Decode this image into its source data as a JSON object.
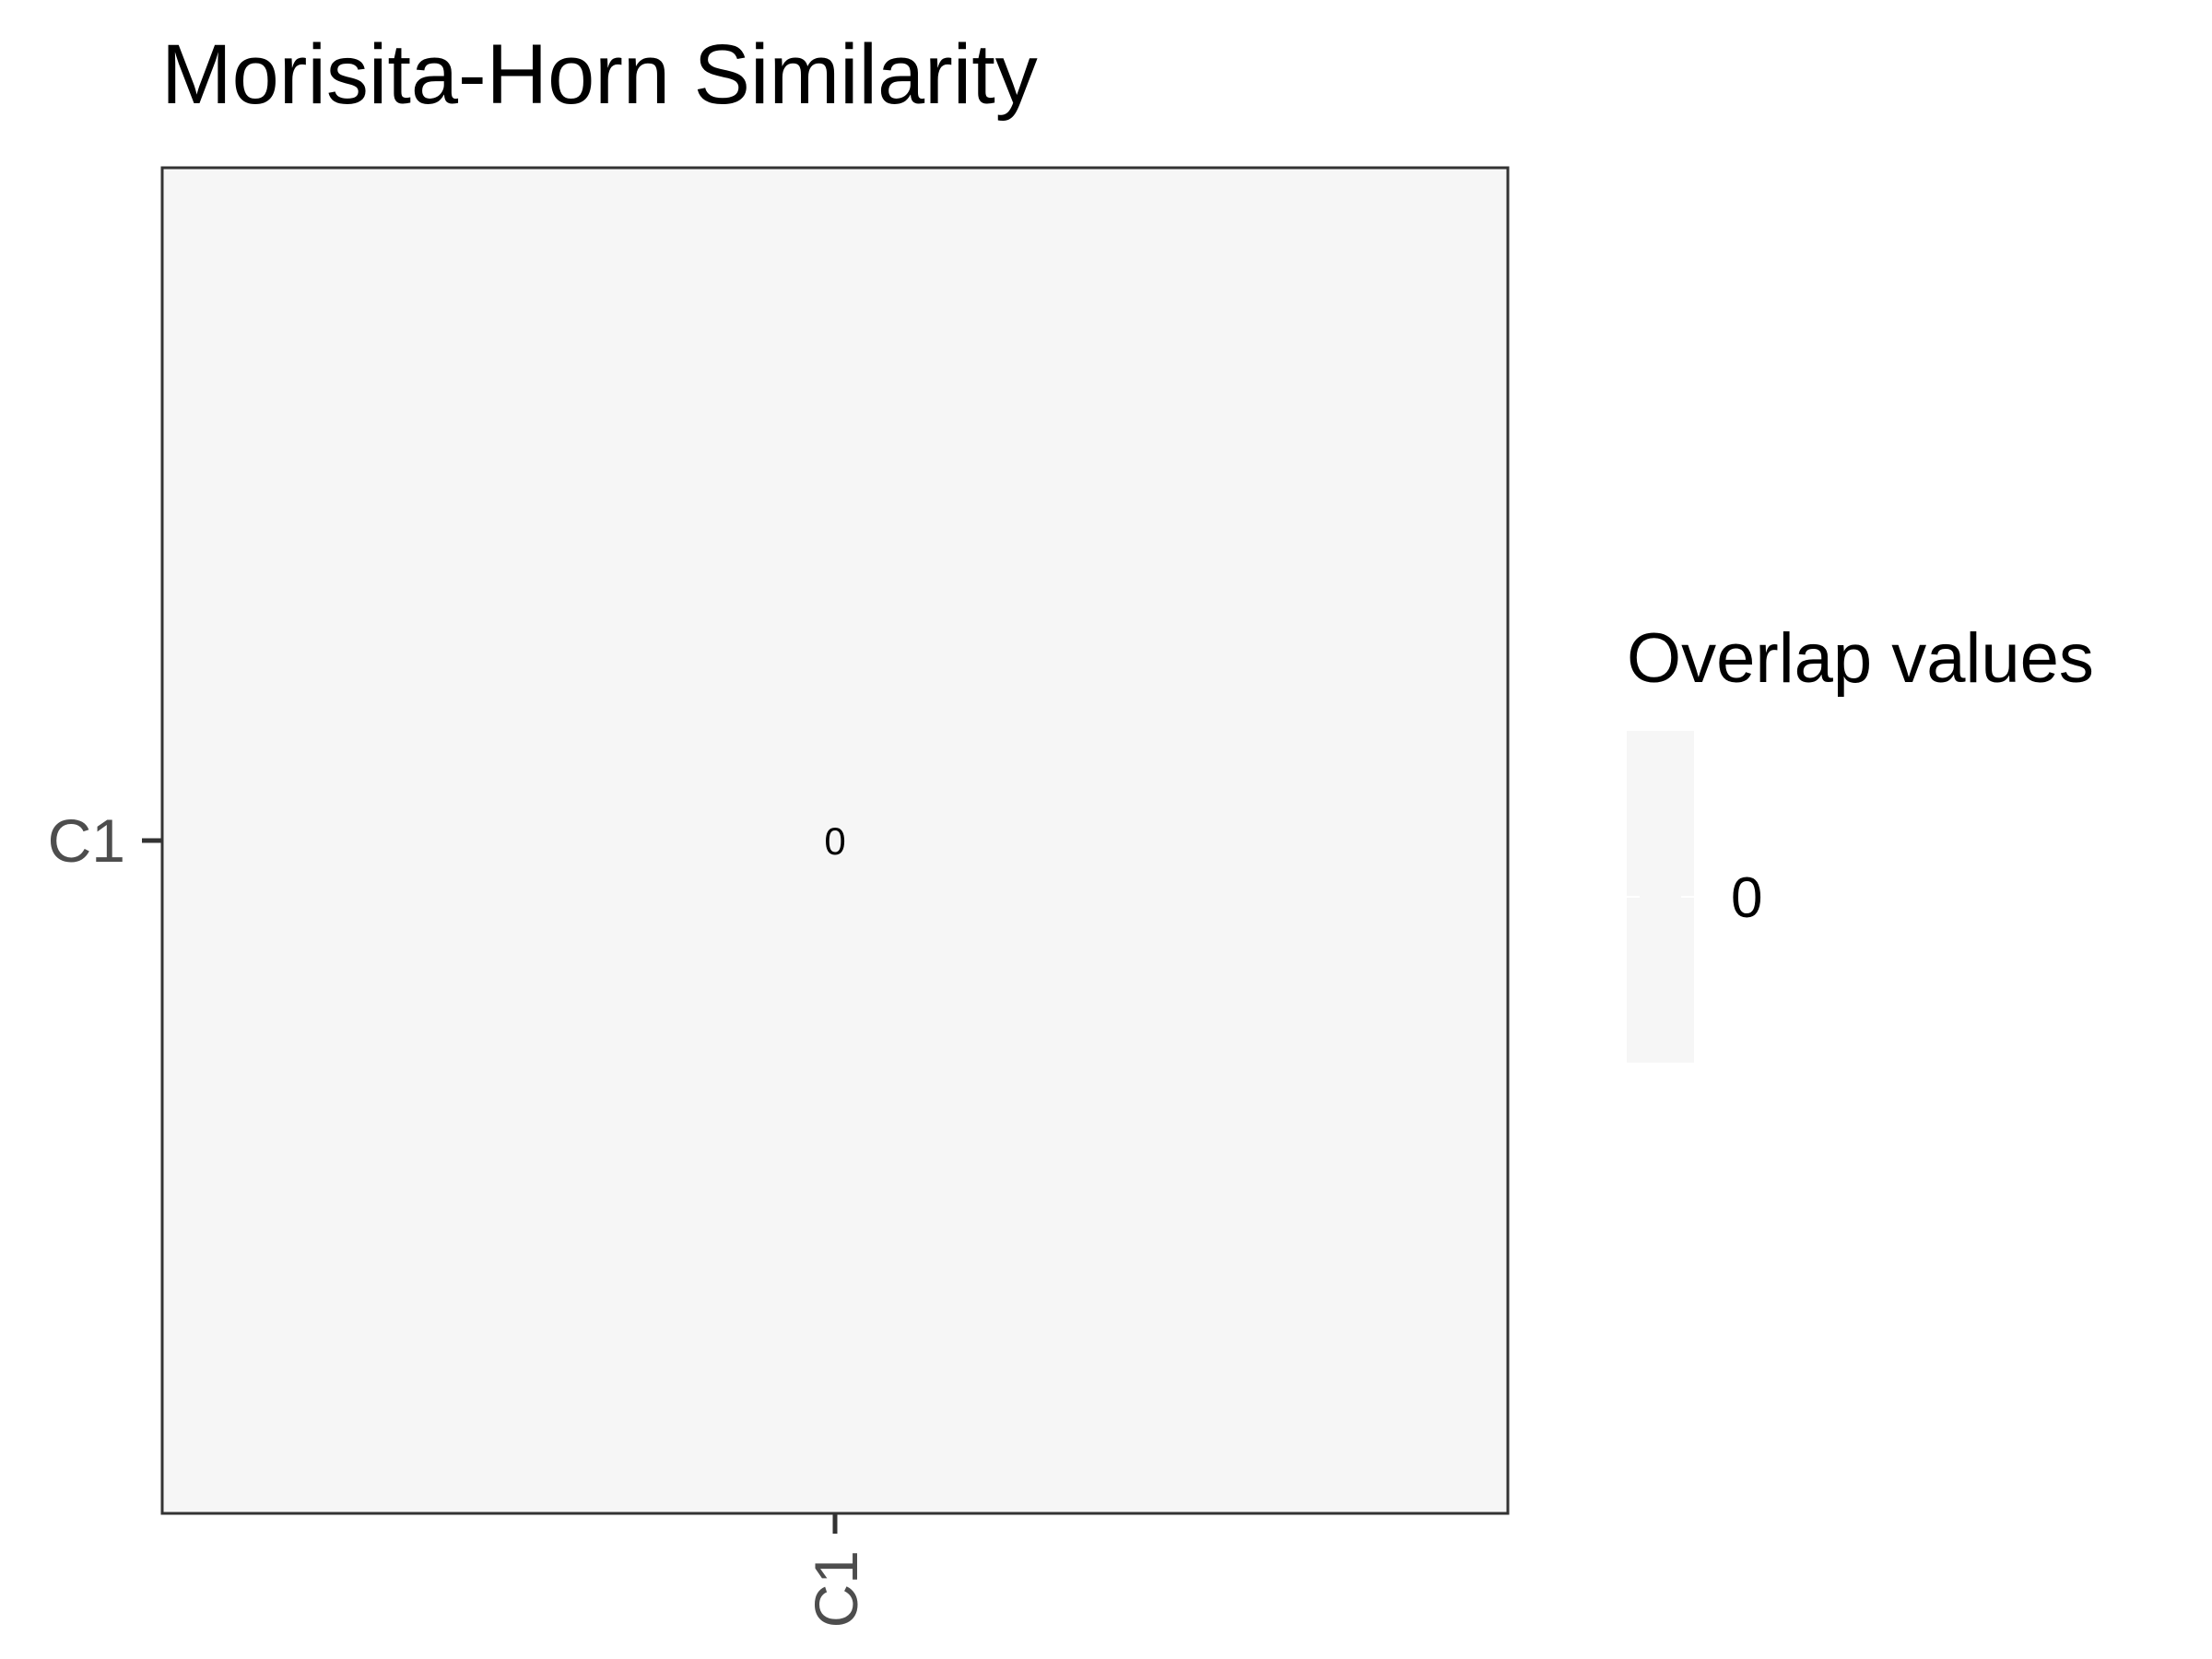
{
  "chart_data": {
    "type": "heatmap",
    "title": "Morisita-Horn Similarity",
    "xlabel": "",
    "ylabel": "",
    "x_categories": [
      "C1"
    ],
    "y_categories": [
      "C1"
    ],
    "cells": [
      {
        "x": "C1",
        "y": "C1",
        "value": 0,
        "label": "0"
      }
    ],
    "legend": {
      "title": "Overlap values",
      "placement": "right",
      "breaks": [
        "0"
      ]
    },
    "colors": {
      "cell_fill": "#f6f6f6",
      "panel_border": "#333333",
      "tick_color": "#333333",
      "tick_label": "#4d4d4d"
    },
    "grid": false
  }
}
